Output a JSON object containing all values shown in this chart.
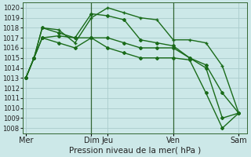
{
  "xlabel": "Pression niveau de la mer( hPa )",
  "background_color": "#cce8e8",
  "grid_color": "#aacccc",
  "line_color": "#1a6b1a",
  "vline_color": "#336633",
  "ylim": [
    1007.5,
    1020.5
  ],
  "xlim": [
    -0.2,
    13.5
  ],
  "yticks": [
    1008,
    1009,
    1010,
    1011,
    1012,
    1013,
    1014,
    1015,
    1016,
    1017,
    1018,
    1019,
    1020
  ],
  "xtick_labels": [
    "Mer",
    "Dim",
    "Jeu",
    "Ven",
    "Sam"
  ],
  "xtick_positions": [
    0,
    4,
    5,
    9,
    13
  ],
  "vlines": [
    4,
    9
  ],
  "series": [
    {
      "x": [
        0,
        0.5,
        1,
        2,
        3,
        4,
        5,
        6,
        7,
        8,
        9,
        10,
        11,
        12,
        13
      ],
      "y": [
        1013,
        1015,
        1017,
        1017.2,
        1017,
        1017,
        1017,
        1016.5,
        1016,
        1016,
        1016,
        1015,
        1014.3,
        1011.5,
        1009.5
      ],
      "marker": "D",
      "markersize": 2.0,
      "linewidth": 1.0
    },
    {
      "x": [
        0,
        0.5,
        1,
        2,
        3,
        4,
        5,
        6,
        7,
        8,
        9,
        10,
        11,
        12,
        13
      ],
      "y": [
        1013,
        1015,
        1018,
        1017.8,
        1016.5,
        1019,
        1020,
        1019.5,
        1019,
        1018.8,
        1016.8,
        1016.8,
        1016.5,
        1014.2,
        1009.5
      ],
      "marker": "+",
      "markersize": 3.5,
      "linewidth": 1.0
    },
    {
      "x": [
        0,
        0.5,
        1,
        2,
        3,
        4,
        5,
        6,
        7,
        8,
        9,
        10,
        11,
        12,
        13
      ],
      "y": [
        1013,
        1015,
        1018,
        1017.5,
        1017,
        1019.4,
        1019.2,
        1018.8,
        1016.8,
        1016.5,
        1016.2,
        1015,
        1014,
        1009,
        1009.5
      ],
      "marker": "D",
      "markersize": 2.0,
      "linewidth": 1.0
    },
    {
      "x": [
        0,
        0.5,
        1,
        2,
        3,
        4,
        5,
        6,
        7,
        8,
        9,
        10,
        11,
        12,
        13
      ],
      "y": [
        1013,
        1015,
        1017,
        1016.5,
        1016,
        1017,
        1016,
        1015.5,
        1015,
        1015,
        1015,
        1014.8,
        1011.5,
        1008,
        1009.5
      ],
      "marker": "D",
      "markersize": 2.0,
      "linewidth": 1.0
    }
  ],
  "ytick_fontsize": 6,
  "xtick_fontsize": 7,
  "xlabel_fontsize": 7.5
}
